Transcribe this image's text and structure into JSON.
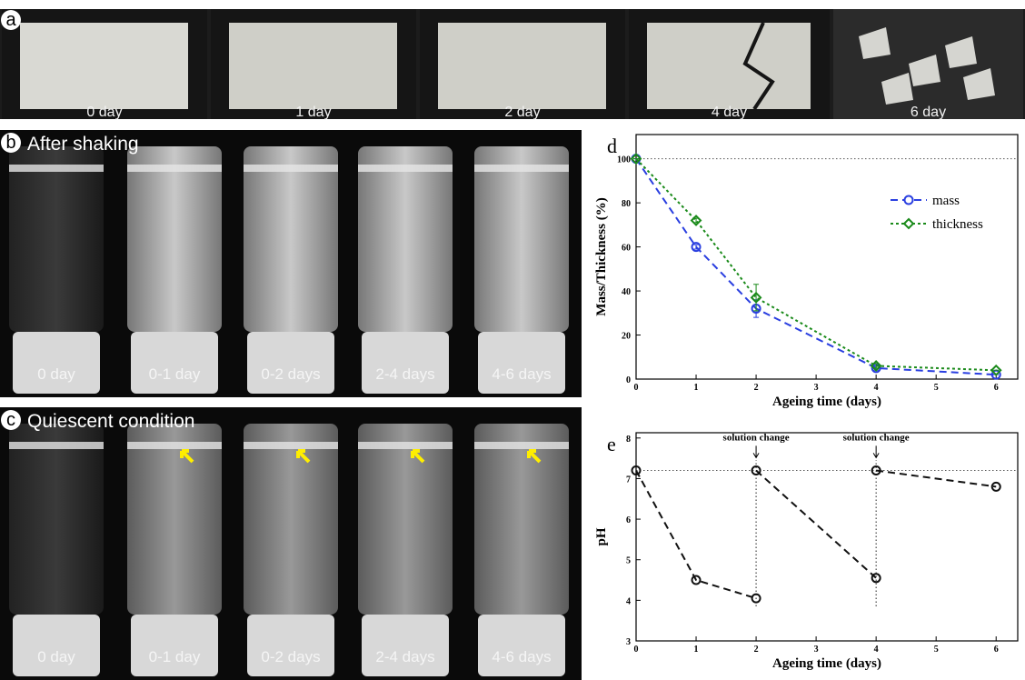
{
  "panels": [
    {
      "label": "a",
      "captions": [
        "0 day",
        "1 day",
        "2 day",
        "4 day",
        "6 day"
      ]
    },
    {
      "label": "b",
      "title": "After shaking",
      "captions": [
        "0 day",
        "0-1 day",
        "0-2 days",
        "2-4 days",
        "4-6 days"
      ]
    },
    {
      "label": "c",
      "title": "Quiescent condition",
      "captions": [
        "0 day",
        "0-1 day",
        "0-2 days",
        "2-4 days",
        "4-6 days"
      ]
    }
  ],
  "chart_data": [
    {
      "type": "line",
      "label": "d",
      "xlabel": "Ageing time (days)",
      "ylabel": "Mass/Thickness (%)",
      "x": [
        0,
        1,
        2,
        4,
        6
      ],
      "series": [
        {
          "name": "mass",
          "color": "#2a3fe0",
          "marker": "circle",
          "linestyle": "dashed",
          "values": [
            100,
            60,
            32,
            5,
            2
          ],
          "errors": [
            0,
            1,
            4,
            1,
            0
          ]
        },
        {
          "name": "thickness",
          "color": "#1a8a1a",
          "marker": "diamond",
          "linestyle": "dotted",
          "values": [
            100,
            72,
            37,
            6,
            4
          ],
          "errors": [
            0,
            1,
            6,
            1,
            0
          ]
        }
      ],
      "xlim": [
        0,
        6.36
      ],
      "ylim": [
        0,
        111
      ],
      "xticks": [
        0,
        1,
        2,
        3,
        4,
        5,
        6
      ],
      "yticks": [
        0,
        20,
        40,
        60,
        80,
        100
      ],
      "hline": 100,
      "legend": "upper-right"
    },
    {
      "type": "line",
      "label": "e",
      "xlabel": "Ageing time (days)",
      "ylabel": "pH",
      "x": [
        0,
        1,
        2,
        null,
        2,
        4,
        null,
        4,
        6
      ],
      "series": [
        {
          "color": "#111111",
          "marker": "circle",
          "linestyle": "dashed",
          "values": [
            7.2,
            4.5,
            4.05,
            null,
            7.2,
            4.55,
            null,
            7.2,
            6.8
          ]
        }
      ],
      "xlim": [
        0,
        6.36
      ],
      "ylim": [
        3,
        8.13
      ],
      "xticks": [
        0,
        1,
        2,
        3,
        4,
        5,
        6
      ],
      "yticks": [
        3,
        4,
        5,
        6,
        7,
        8
      ],
      "hline": 7.2,
      "vlines": [
        {
          "x": 2,
          "ymin": 3.85,
          "ymax": 7.45,
          "text": "solution change"
        },
        {
          "x": 4,
          "ymin": 3.85,
          "ymax": 7.45,
          "text": "solution change"
        }
      ]
    }
  ]
}
